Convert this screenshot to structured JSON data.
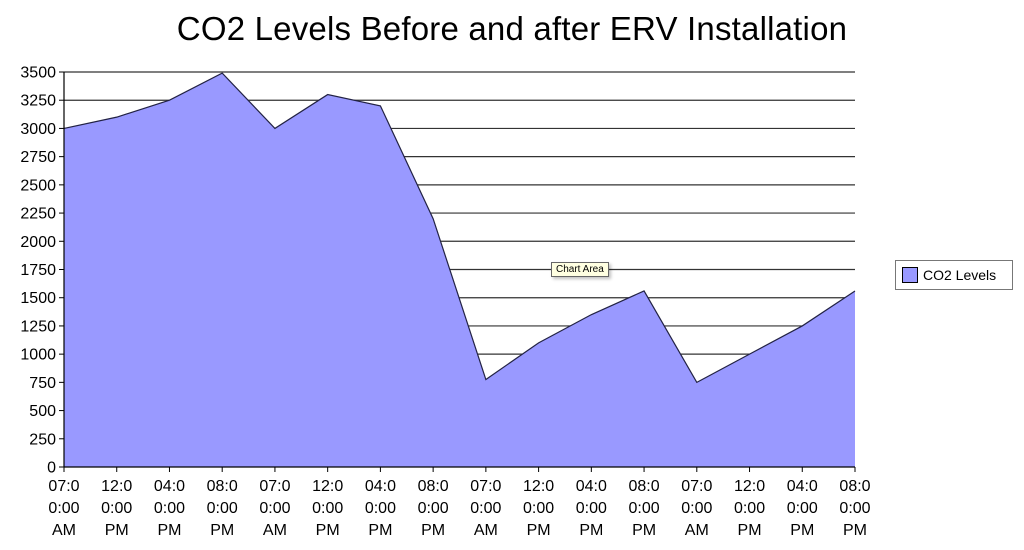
{
  "chart_data": {
    "type": "area",
    "title": "CO2 Levels Before and after ERV Installation",
    "xlabel": "",
    "ylabel": "",
    "ylim": [
      0,
      3500
    ],
    "ytick_step": 250,
    "grid": true,
    "legend_position": "right",
    "categories": [
      [
        "07:0",
        "0:00",
        "AM"
      ],
      [
        "12:0",
        "0:00",
        "PM"
      ],
      [
        "04:0",
        "0:00",
        "PM"
      ],
      [
        "08:0",
        "0:00",
        "PM"
      ],
      [
        "07:0",
        "0:00",
        "AM"
      ],
      [
        "12:0",
        "0:00",
        "PM"
      ],
      [
        "04:0",
        "0:00",
        "PM"
      ],
      [
        "08:0",
        "0:00",
        "PM"
      ],
      [
        "07:0",
        "0:00",
        "AM"
      ],
      [
        "12:0",
        "0:00",
        "PM"
      ],
      [
        "04:0",
        "0:00",
        "PM"
      ],
      [
        "08:0",
        "0:00",
        "PM"
      ],
      [
        "07:0",
        "0:00",
        "AM"
      ],
      [
        "12:0",
        "0:00",
        "PM"
      ],
      [
        "04:0",
        "0:00",
        "PM"
      ],
      [
        "08:0",
        "0:00",
        "PM"
      ]
    ],
    "series": [
      {
        "name": "CO2 Levels",
        "color": "#9999ff",
        "values": [
          3000,
          3100,
          3250,
          3490,
          3000,
          3300,
          3200,
          2200,
          775,
          1100,
          1350,
          1560,
          750,
          1000,
          1250,
          1560
        ]
      }
    ]
  },
  "tooltip_text": "Chart Area"
}
